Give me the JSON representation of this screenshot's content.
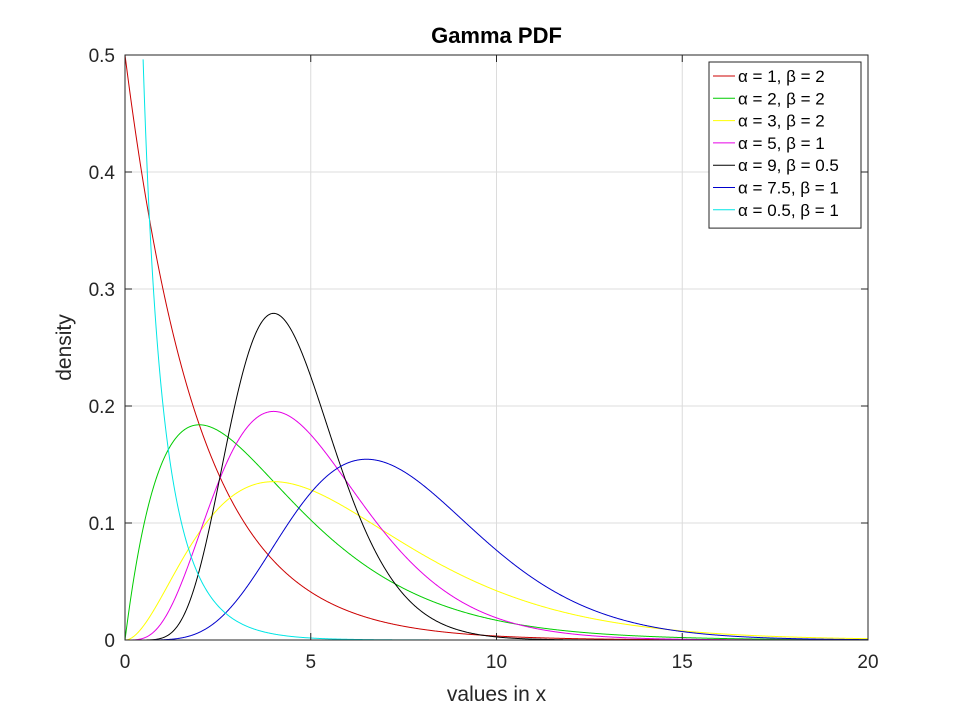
{
  "chart_data": {
    "type": "line",
    "title": "Gamma PDF",
    "xlabel": "values in x",
    "ylabel": "density",
    "xlim": [
      0,
      20
    ],
    "ylim": [
      0,
      0.5
    ],
    "xticks": [
      0,
      5,
      10,
      15,
      20
    ],
    "yticks": [
      0,
      0.1,
      0.2,
      0.3,
      0.4,
      0.5
    ],
    "xtick_labels": [
      "0",
      "5",
      "10",
      "15",
      "20"
    ],
    "ytick_labels": [
      "0",
      "0.1",
      "0.2",
      "0.3",
      "0.4",
      "0.5"
    ],
    "grid": true,
    "legend_position": "top-right",
    "distribution": "gamma",
    "series": [
      {
        "name": "α = 1, β = 2",
        "alpha": 1,
        "beta": 2,
        "color": "#cc0000"
      },
      {
        "name": "α = 2, β = 2",
        "alpha": 2,
        "beta": 2,
        "color": "#00cc00"
      },
      {
        "name": "α = 3, β = 2",
        "alpha": 3,
        "beta": 2,
        "color": "#ffff00"
      },
      {
        "name": "α = 5, β = 1",
        "alpha": 5,
        "beta": 1,
        "color": "#e600e6"
      },
      {
        "name": "α = 9, β = 0.5",
        "alpha": 9,
        "beta": 0.5,
        "color": "#000000"
      },
      {
        "name": "α = 7.5, β = 1",
        "alpha": 7.5,
        "beta": 1,
        "color": "#0000cc"
      },
      {
        "name": "α = 0.5, β = 1",
        "alpha": 0.5,
        "beta": 1,
        "color": "#00e6e6"
      }
    ]
  }
}
